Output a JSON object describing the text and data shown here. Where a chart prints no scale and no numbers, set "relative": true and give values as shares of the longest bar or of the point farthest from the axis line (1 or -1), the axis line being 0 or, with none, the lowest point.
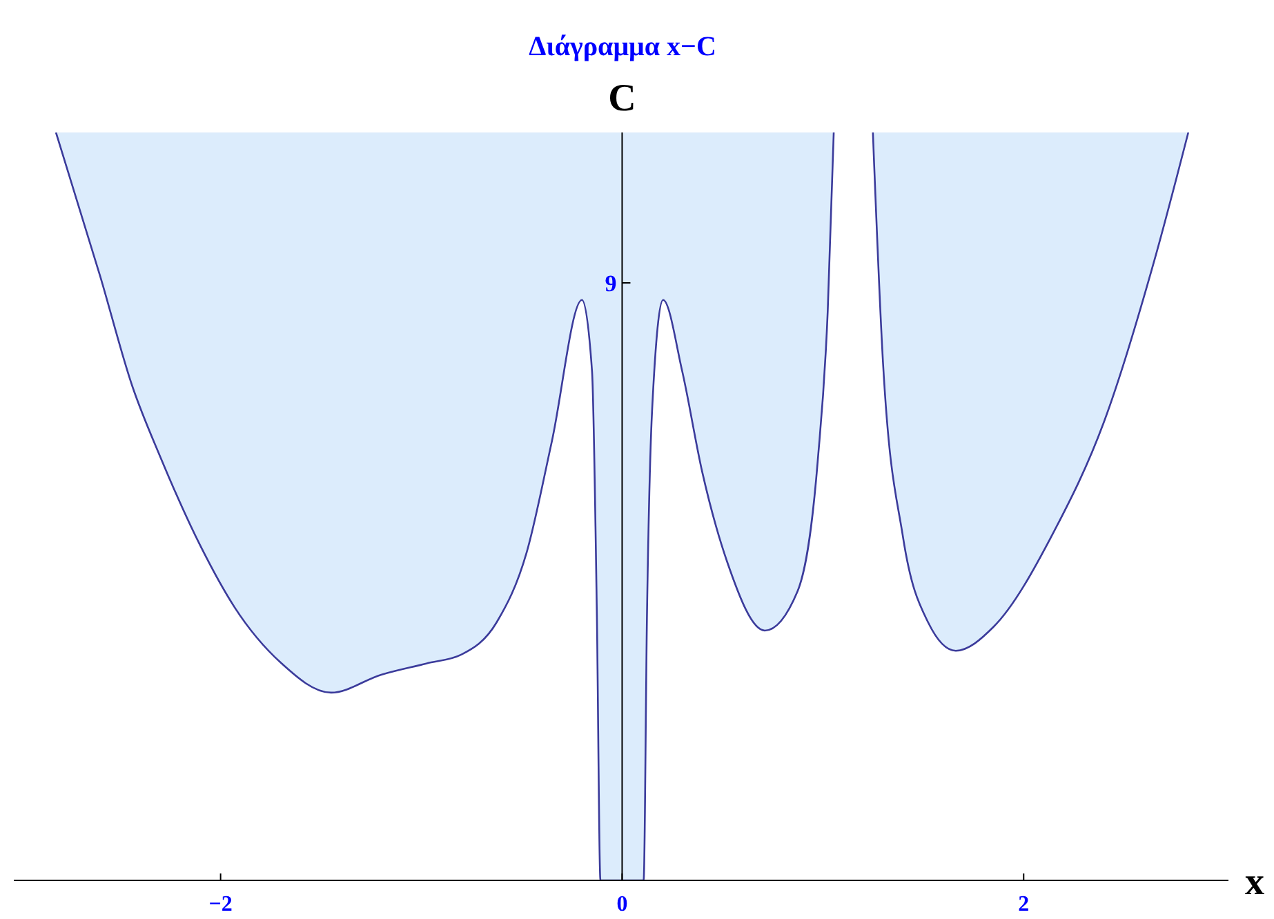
{
  "chart_data": {
    "type": "line",
    "title": "Διάγραμμα x−C",
    "xlabel": "x",
    "ylabel": "C",
    "relative": true,
    "x": [
      -2.82,
      -2.6,
      -2.44,
      -2.3,
      -2.1,
      -1.93,
      -1.7,
      -1.45,
      -1.2,
      -0.975,
      -0.8,
      -0.625,
      -0.475,
      -0.35,
      -0.2,
      -0.15,
      -0.126,
      -0.108,
      0,
      0.107,
      0.124,
      0.149,
      0.204,
      0.299,
      0.399,
      0.523,
      0.711,
      0.873,
      0.974,
      1.024,
      1.054,
      1.15,
      1.249,
      1.299,
      1.399,
      1.524,
      1.662,
      1.85,
      2.15,
      2.4,
      2.65,
      2.82
    ],
    "series": [
      {
        "color": "#3b3b9b",
        "values": [
          1,
          0.808,
          0.661,
          0.566,
          0.447,
          0.365,
          0.291,
          0.251,
          0.275,
          0.29,
          0.302,
          0.345,
          0.439,
          0.587,
          0.776,
          0.681,
          0.359,
          0,
          0,
          0,
          0.359,
          0.627,
          0.776,
          0.681,
          0.546,
          0.426,
          0.334,
          0.386,
          0.56,
          0.761,
          1,
          null,
          1,
          0.694,
          0.459,
          0.345,
          0.307,
          0.339,
          0.466,
          0.613,
          0.828,
          1
        ]
      }
    ],
    "xlim": [
      -3.03,
      3.02
    ],
    "xticks": [
      {
        "value": -2,
        "label": "−2"
      },
      0,
      2
    ],
    "annotations": [
      "9"
    ]
  }
}
